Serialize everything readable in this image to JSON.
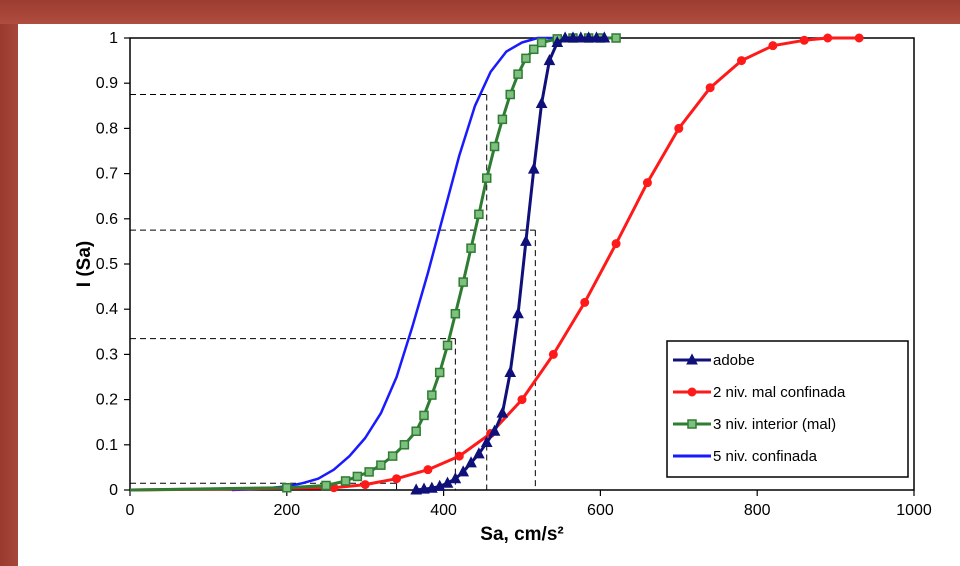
{
  "chart_data": {
    "type": "line",
    "title": "",
    "xlabel": "Sa, cm/s²",
    "ylabel": "I (Sa)",
    "xlim": [
      0,
      1000
    ],
    "ylim": [
      0,
      1
    ],
    "x_ticks": [
      "0",
      "200",
      "400",
      "600",
      "800",
      "1000"
    ],
    "y_ticks": [
      "0",
      "0.1",
      "0.2",
      "0.3",
      "0.4",
      "0.5",
      "0.6",
      "0.7",
      "0.8",
      "0.9",
      "1"
    ],
    "grid": false,
    "legend_position": "bottom-right",
    "series": [
      {
        "name": "adobe",
        "color": "#10107a",
        "marker": "triangle",
        "points": [
          [
            365,
            0.0
          ],
          [
            375,
            0.002
          ],
          [
            385,
            0.004
          ],
          [
            395,
            0.008
          ],
          [
            405,
            0.015
          ],
          [
            415,
            0.025
          ],
          [
            425,
            0.04
          ],
          [
            435,
            0.06
          ],
          [
            445,
            0.08
          ],
          [
            455,
            0.105
          ],
          [
            465,
            0.13
          ],
          [
            475,
            0.17
          ],
          [
            485,
            0.26
          ],
          [
            495,
            0.39
          ],
          [
            505,
            0.55
          ],
          [
            515,
            0.71
          ],
          [
            525,
            0.855
          ],
          [
            535,
            0.95
          ],
          [
            545,
            0.99
          ],
          [
            555,
            1.0
          ],
          [
            565,
            1.0
          ],
          [
            575,
            1.0
          ],
          [
            585,
            1.0
          ],
          [
            595,
            1.0
          ],
          [
            605,
            1.0
          ]
        ]
      },
      {
        "name": "2 niv. mal confinada",
        "color": "#ff1a1a",
        "marker": "circle",
        "points": [
          [
            0,
            0.0
          ],
          [
            260,
            0.005
          ],
          [
            300,
            0.012
          ],
          [
            340,
            0.025
          ],
          [
            380,
            0.045
          ],
          [
            420,
            0.075
          ],
          [
            460,
            0.125
          ],
          [
            500,
            0.2
          ],
          [
            540,
            0.3
          ],
          [
            580,
            0.415
          ],
          [
            620,
            0.545
          ],
          [
            660,
            0.68
          ],
          [
            700,
            0.8
          ],
          [
            740,
            0.89
          ],
          [
            780,
            0.95
          ],
          [
            820,
            0.983
          ],
          [
            860,
            0.995
          ],
          [
            890,
            1.0
          ],
          [
            930,
            1.0
          ]
        ]
      },
      {
        "name": "3 niv. interior (mal)",
        "color": "#2e7d32",
        "marker": "square",
        "points": [
          [
            0,
            0.0
          ],
          [
            200,
            0.005
          ],
          [
            250,
            0.01
          ],
          [
            275,
            0.02
          ],
          [
            290,
            0.03
          ],
          [
            305,
            0.04
          ],
          [
            320,
            0.055
          ],
          [
            335,
            0.075
          ],
          [
            350,
            0.1
          ],
          [
            365,
            0.13
          ],
          [
            375,
            0.165
          ],
          [
            385,
            0.21
          ],
          [
            395,
            0.26
          ],
          [
            405,
            0.32
          ],
          [
            415,
            0.39
          ],
          [
            425,
            0.46
          ],
          [
            435,
            0.535
          ],
          [
            445,
            0.61
          ],
          [
            455,
            0.69
          ],
          [
            465,
            0.76
          ],
          [
            475,
            0.82
          ],
          [
            485,
            0.875
          ],
          [
            495,
            0.92
          ],
          [
            505,
            0.955
          ],
          [
            515,
            0.975
          ],
          [
            525,
            0.99
          ],
          [
            545,
            0.998
          ],
          [
            565,
            1.0
          ],
          [
            585,
            1.0
          ],
          [
            600,
            1.0
          ],
          [
            620,
            1.0
          ]
        ]
      },
      {
        "name": "5 niv. confinada",
        "color": "#1a1aff",
        "marker": "none",
        "points": [
          [
            130,
            0.0
          ],
          [
            170,
            0.003
          ],
          [
            200,
            0.008
          ],
          [
            220,
            0.015
          ],
          [
            240,
            0.025
          ],
          [
            260,
            0.045
          ],
          [
            280,
            0.075
          ],
          [
            300,
            0.115
          ],
          [
            320,
            0.17
          ],
          [
            340,
            0.25
          ],
          [
            360,
            0.36
          ],
          [
            380,
            0.48
          ],
          [
            400,
            0.61
          ],
          [
            420,
            0.74
          ],
          [
            440,
            0.85
          ],
          [
            460,
            0.925
          ],
          [
            480,
            0.97
          ],
          [
            500,
            0.99
          ],
          [
            520,
            1.0
          ],
          [
            560,
            1.0
          ]
        ]
      }
    ],
    "reference_lines": [
      {
        "x": 455,
        "y": 0.875
      },
      {
        "x": 517,
        "y": 0.575
      },
      {
        "x": 415,
        "y": 0.335
      },
      {
        "x": 340,
        "y": 0.015
      },
      {
        "x": 455,
        "y": 0.0
      }
    ]
  }
}
